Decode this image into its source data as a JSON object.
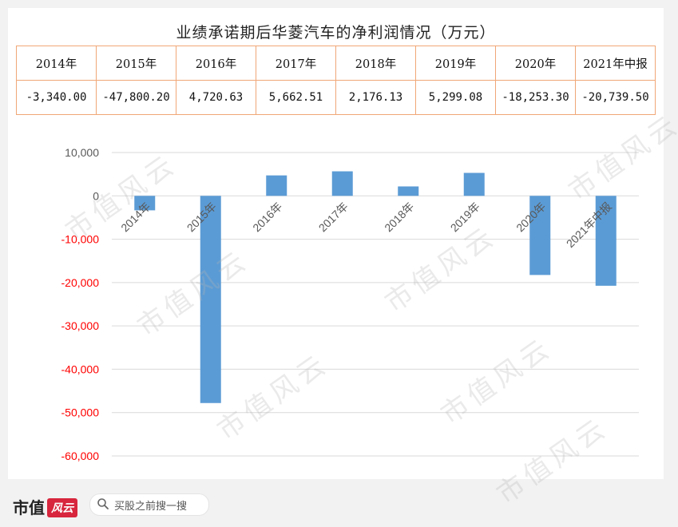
{
  "title": "业绩承诺期后华菱汽车的净利润情况（万元）",
  "table": {
    "headers": [
      "2014年",
      "2015年",
      "2016年",
      "2017年",
      "2018年",
      "2019年",
      "2020年",
      "2021年中报"
    ],
    "values": [
      "-3,340.00",
      "-47,800.20",
      "4,720.63",
      "5,662.51",
      "2,176.13",
      "5,299.08",
      "-18,253.30",
      "-20,739.50"
    ]
  },
  "chart_data": {
    "type": "bar",
    "title": "",
    "categories": [
      "2014年",
      "2015年",
      "2016年",
      "2017年",
      "2018年",
      "2019年",
      "2020年",
      "2021年中报"
    ],
    "values": [
      -3340.0,
      -47800.2,
      4720.63,
      5662.51,
      2176.13,
      5299.08,
      -18253.3,
      -20739.5
    ],
    "yticks": [
      10000,
      0,
      -10000,
      -20000,
      -30000,
      -40000,
      -50000,
      -60000
    ],
    "ytick_labels": [
      "10,000",
      "0",
      "-10,000",
      "-20,000",
      "-30,000",
      "-40,000",
      "-50,000",
      "-60,000"
    ],
    "ylim": [
      -60000,
      10000
    ],
    "grid": true,
    "colors": {
      "bar": "#5b9bd5",
      "negative_tick": "#ff0000",
      "positive_tick": "#595959"
    }
  },
  "watermark": "市值风云",
  "footer": {
    "brand": "市值",
    "brand_mark": "风云",
    "search_placeholder": "买股之前搜一搜"
  }
}
